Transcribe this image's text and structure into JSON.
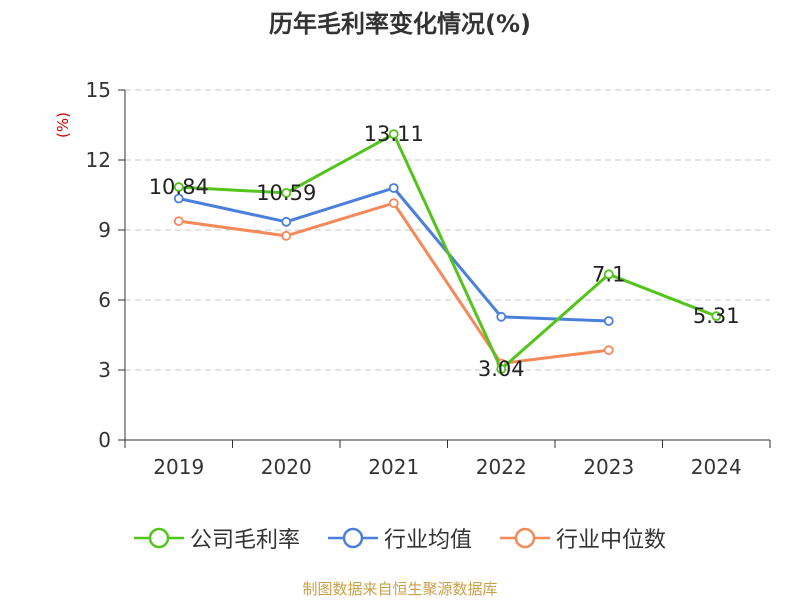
{
  "title": "历年毛利率变化情况(%)",
  "source": "制图数据来自恒生聚源数据库",
  "chart_data": {
    "type": "line",
    "title": "历年毛利率变化情况(%)",
    "ylabel": "(%)",
    "xlabel": "",
    "categories": [
      "2019",
      "2020",
      "2021",
      "2022",
      "2023",
      "2024"
    ],
    "ylim": [
      0,
      15
    ],
    "yticks": [
      0,
      3,
      6,
      9,
      12,
      15
    ],
    "grid": true,
    "legend_position": "bottom",
    "series": [
      {
        "name": "公司毛利率",
        "color": "#52c41a",
        "values": [
          10.84,
          10.59,
          13.11,
          3.04,
          7.1,
          5.31
        ],
        "labels": [
          "10.84",
          "10.59",
          "13.11",
          "3.04",
          "7.1",
          "5.31"
        ]
      },
      {
        "name": "行业均值",
        "color": "#4a7fdc",
        "values": [
          10.35,
          9.35,
          10.8,
          5.28,
          5.1,
          null
        ]
      },
      {
        "name": "行业中位数",
        "color": "#f5895a",
        "values": [
          9.38,
          8.75,
          10.15,
          3.28,
          3.85,
          null
        ]
      }
    ]
  }
}
